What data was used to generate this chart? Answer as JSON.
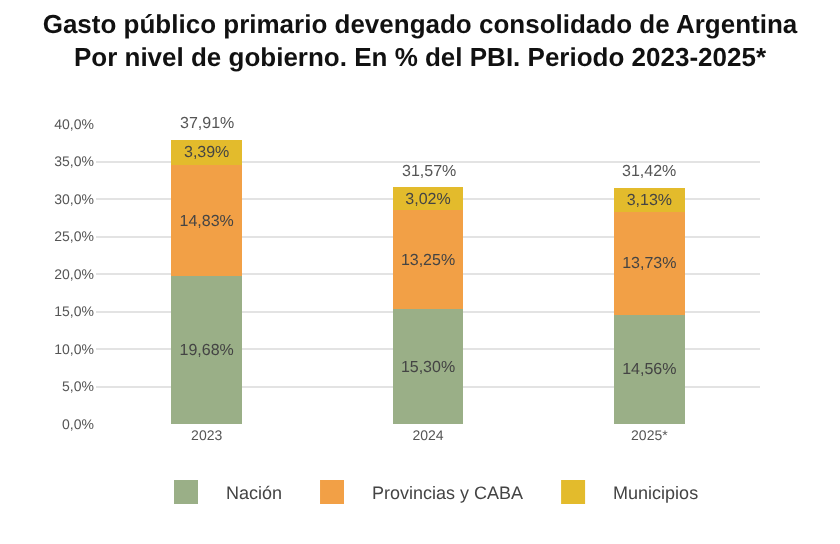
{
  "chart_data": {
    "type": "bar",
    "stacked": true,
    "title": "Gasto público primario devengado consolidado de Argentina",
    "subtitle": "Por nivel de gobierno. En % del PBI. Periodo 2023-2025*",
    "categories": [
      "2023",
      "2024",
      "2025*"
    ],
    "series": [
      {
        "name": "Nación",
        "color": "#9aaf87",
        "values": [
          19.68,
          15.3,
          14.56
        ],
        "value_labels": [
          "19,68%",
          "15,30%",
          "14,56%"
        ]
      },
      {
        "name": "Provincias y CABA",
        "color": "#f2a046",
        "values": [
          14.83,
          13.25,
          13.73
        ],
        "value_labels": [
          "14,83%",
          "13,25%",
          "13,73%"
        ]
      },
      {
        "name": "Municipios",
        "color": "#e3bb2c",
        "values": [
          3.39,
          3.02,
          3.13
        ],
        "value_labels": [
          "3,39%",
          "3,02%",
          "3,13%"
        ]
      }
    ],
    "totals": [
      "37,91%",
      "31,57%",
      "31,42%"
    ],
    "ylim": [
      0,
      40
    ],
    "yticks": [
      {
        "value": 0,
        "label": "0,0%"
      },
      {
        "value": 5,
        "label": "5,0%"
      },
      {
        "value": 10,
        "label": "10,0%"
      },
      {
        "value": 15,
        "label": "15,0%"
      },
      {
        "value": 20,
        "label": "20,0%"
      },
      {
        "value": 25,
        "label": "25,0%"
      },
      {
        "value": 30,
        "label": "30,0%"
      },
      {
        "value": 35,
        "label": "35,0%"
      },
      {
        "value": 40,
        "label": "40,0%"
      }
    ],
    "grid": "y",
    "legend": "bottom"
  }
}
